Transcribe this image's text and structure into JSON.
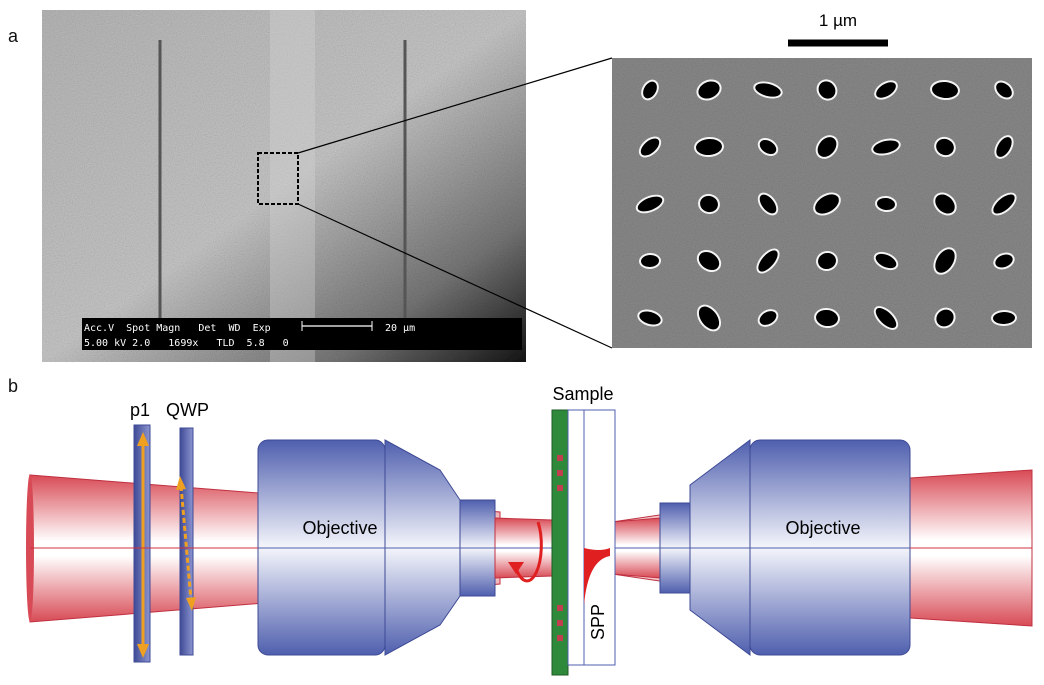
{
  "panel_a": {
    "label": "a",
    "sem_info": {
      "header": "Acc.V  Spot Magn   Det  WD  Exp",
      "values": "5.00 kV 2.0   1699x   TLD  5.8   0",
      "scale": "20 µm"
    },
    "inset_scale": "1 µm"
  },
  "panel_b": {
    "label": "b",
    "labels": {
      "p1": "p1",
      "qwp": "QWP",
      "objective_left": "Objective",
      "objective_right": "Objective",
      "sample": "Sample",
      "spp": "SPP"
    }
  }
}
